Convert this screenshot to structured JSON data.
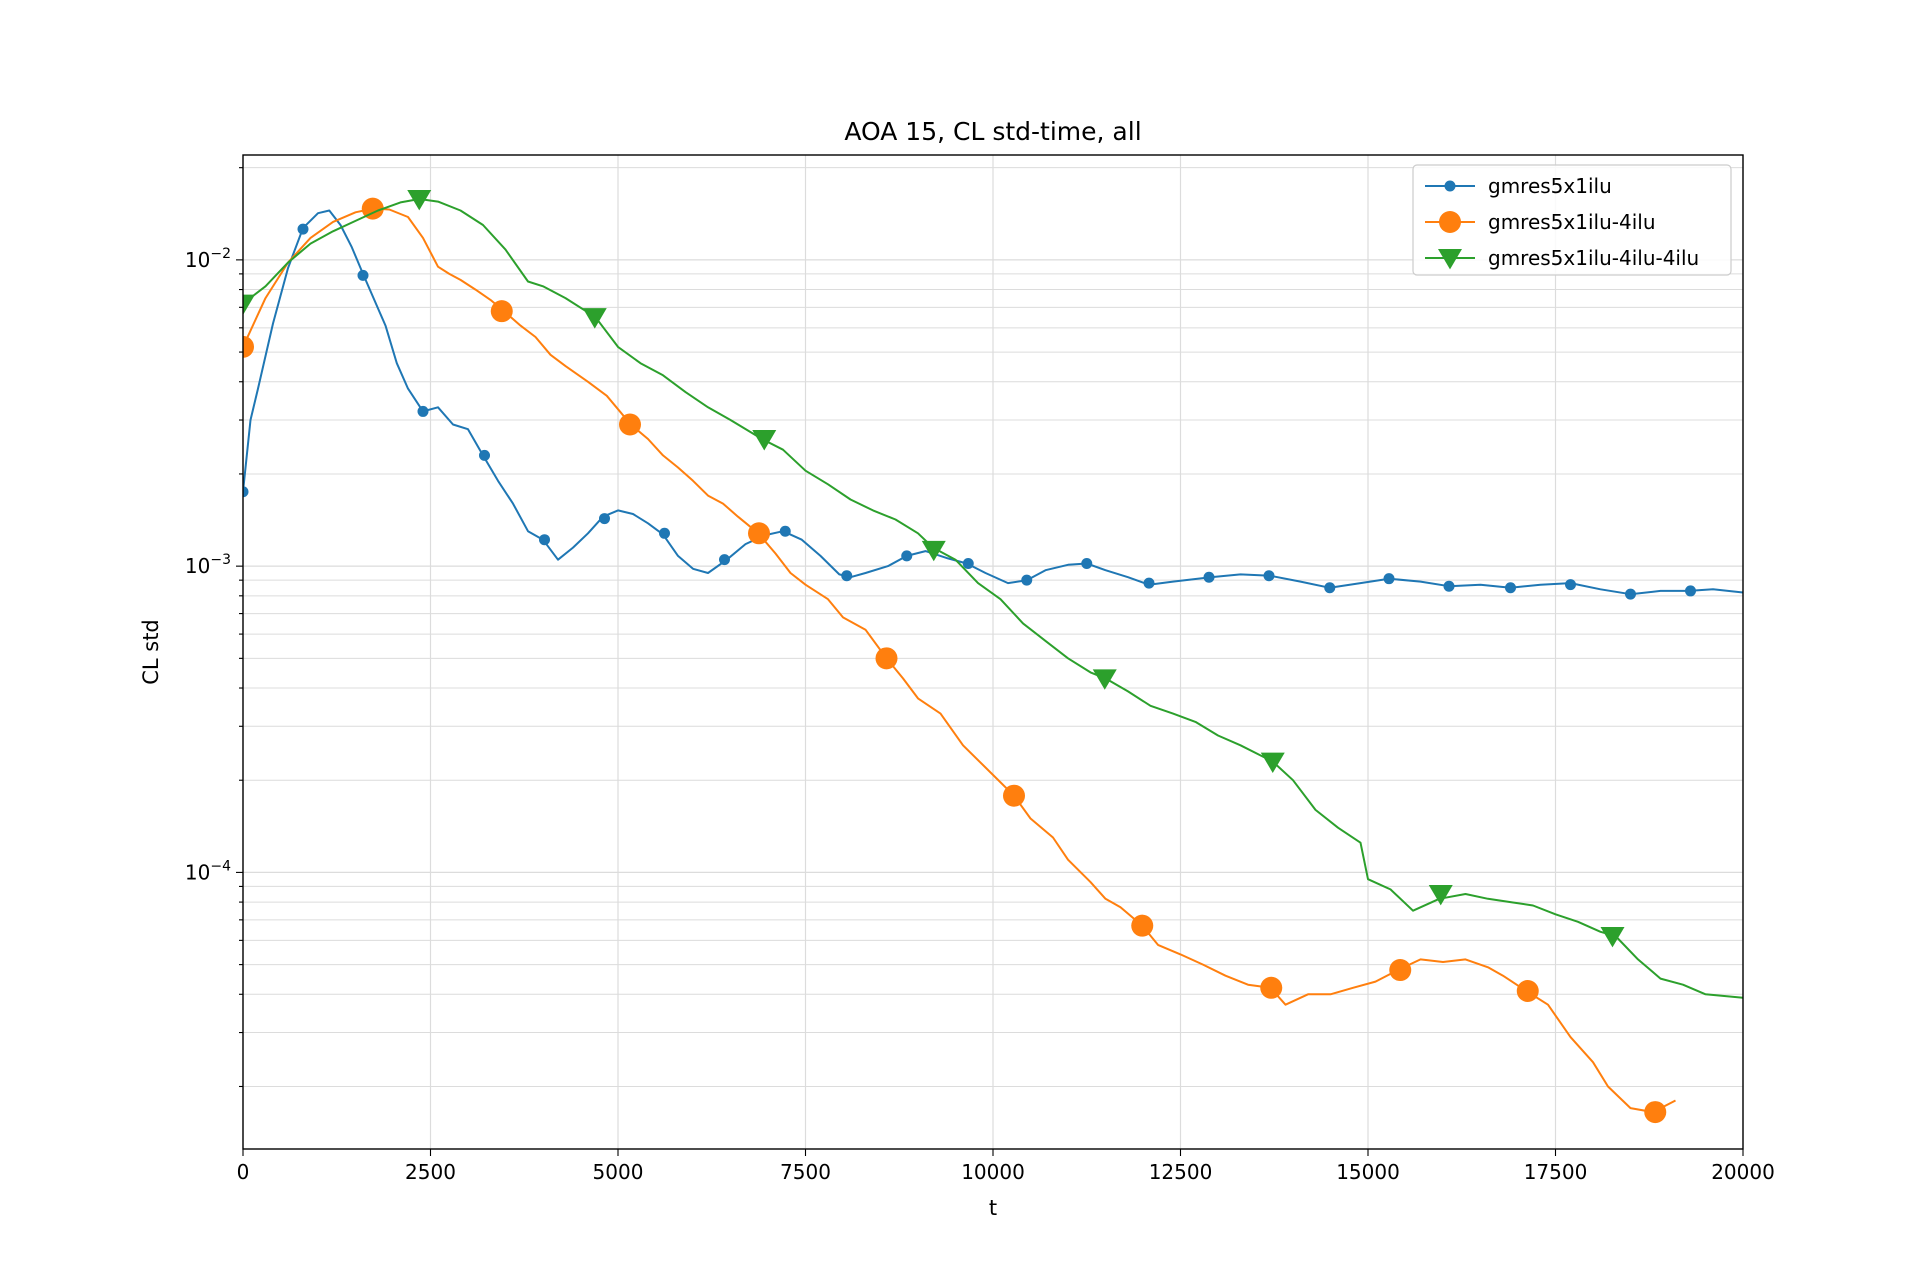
{
  "chart_data": {
    "type": "line",
    "title": "AOA 15, CL std-time, all",
    "xlabel": "t",
    "ylabel": "CL std",
    "xlim": [
      0,
      20000
    ],
    "ylim": [
      1.25e-05,
      0.022
    ],
    "yscale": "log",
    "grid": true,
    "legend_position": "top-right",
    "x_ticks": [
      0,
      2500,
      5000,
      7500,
      10000,
      12500,
      15000,
      17500,
      20000
    ],
    "x_tick_labels": [
      "0",
      "2500",
      "5000",
      "7500",
      "10000",
      "12500",
      "15000",
      "17500",
      "20000"
    ],
    "y_ticks": [
      0.0001,
      0.001,
      0.01
    ],
    "y_tick_labels": [
      {
        "base": "10",
        "exp": "−4"
      },
      {
        "base": "10",
        "exp": "−3"
      },
      {
        "base": "10",
        "exp": "−2"
      }
    ],
    "series": [
      {
        "name": "gmres5x1ilu",
        "color": "#1f77b4",
        "marker": "circle-small",
        "x": [
          0,
          100,
          200,
          400,
          600,
          800,
          1000,
          1150,
          1300,
          1450,
          1600,
          1750,
          1900,
          2050,
          2200,
          2400,
          2600,
          2800,
          3000,
          3200,
          3400,
          3600,
          3800,
          4000,
          4200,
          4400,
          4600,
          4800,
          5000,
          5200,
          5400,
          5600,
          5800,
          6000,
          6200,
          6450,
          6700,
          6950,
          7200,
          7450,
          7700,
          7950,
          8100,
          8300,
          8600,
          8850,
          9100,
          9400,
          9650,
          9900,
          10200,
          10450,
          10700,
          11000,
          11250,
          11500,
          11800,
          12080,
          12400,
          12900,
          13300,
          13700,
          14100,
          14490,
          14900,
          15280,
          15700,
          16080,
          16500,
          16900,
          17300,
          17700,
          18100,
          18500,
          18900,
          19280,
          19600,
          20000
        ],
        "y": [
          0.00175,
          0.003,
          0.0038,
          0.0062,
          0.0094,
          0.0127,
          0.0142,
          0.0145,
          0.013,
          0.011,
          0.009,
          0.0074,
          0.0061,
          0.0046,
          0.0038,
          0.0032,
          0.0033,
          0.0029,
          0.0028,
          0.0023,
          0.0019,
          0.0016,
          0.0013,
          0.00122,
          0.00105,
          0.00115,
          0.00128,
          0.00145,
          0.00152,
          0.00148,
          0.00138,
          0.00127,
          0.00108,
          0.00098,
          0.00095,
          0.00105,
          0.00118,
          0.00126,
          0.0013,
          0.00122,
          0.00108,
          0.00094,
          0.00092,
          0.00095,
          0.001,
          0.00108,
          0.00112,
          0.00106,
          0.00102,
          0.00095,
          0.00088,
          0.0009,
          0.00097,
          0.00101,
          0.00102,
          0.00097,
          0.00092,
          0.00087,
          0.00089,
          0.00092,
          0.00094,
          0.00093,
          0.00089,
          0.00085,
          0.00088,
          0.00091,
          0.00089,
          0.00086,
          0.00087,
          0.00085,
          0.00087,
          0.00088,
          0.00084,
          0.00081,
          0.00083,
          0.00083,
          0.00084,
          0.00082
        ],
        "marker_x": [
          0,
          800,
          1600,
          2400,
          3220,
          4020,
          4820,
          5620,
          6420,
          7230,
          8050,
          8850,
          9670,
          10450,
          11250,
          12080,
          12880,
          13680,
          14490,
          15280,
          16080,
          16900,
          17700,
          18500,
          19300
        ],
        "marker_y": [
          0.00175,
          0.0126,
          0.0089,
          0.0032,
          0.0023,
          0.00122,
          0.00143,
          0.00128,
          0.00105,
          0.0013,
          0.00093,
          0.00108,
          0.00102,
          0.0009,
          0.00102,
          0.00088,
          0.00092,
          0.00093,
          0.00085,
          0.00091,
          0.00086,
          0.00085,
          0.00087,
          0.00081,
          0.00083
        ]
      },
      {
        "name": "gmres5x1ilu-4ilu",
        "color": "#ff7f0e",
        "marker": "circle-large",
        "x": [
          0,
          300,
          600,
          900,
          1200,
          1500,
          1730,
          1950,
          2200,
          2400,
          2600,
          2750,
          2900,
          3100,
          3300,
          3480,
          3700,
          3900,
          4100,
          4300,
          4600,
          4850,
          5170,
          5400,
          5600,
          5800,
          6000,
          6200,
          6400,
          6600,
          6870,
          7100,
          7300,
          7500,
          7800,
          8000,
          8300,
          8580,
          8800,
          9000,
          9300,
          9600,
          9900,
          10280,
          10500,
          10800,
          11000,
          11300,
          11500,
          11700,
          11990,
          12200,
          12500,
          12800,
          13100,
          13400,
          13700,
          13900,
          14200,
          14500,
          14800,
          15100,
          15400,
          15700,
          16000,
          16300,
          16600,
          16800,
          17110,
          17400,
          17700,
          18000,
          18200,
          18500,
          18800,
          19100
        ],
        "y": [
          0.0052,
          0.0075,
          0.0098,
          0.0118,
          0.0133,
          0.0143,
          0.0147,
          0.0146,
          0.0138,
          0.0118,
          0.0095,
          0.009,
          0.0086,
          0.008,
          0.0074,
          0.0068,
          0.0061,
          0.0056,
          0.0049,
          0.0045,
          0.004,
          0.0036,
          0.0029,
          0.0026,
          0.0023,
          0.0021,
          0.0019,
          0.0017,
          0.0016,
          0.00145,
          0.00128,
          0.0011,
          0.00095,
          0.00087,
          0.00078,
          0.00068,
          0.00062,
          0.0005,
          0.00043,
          0.00037,
          0.00033,
          0.00026,
          0.00022,
          0.000178,
          0.00015,
          0.00013,
          0.00011,
          9.3e-05,
          8.2e-05,
          7.7e-05,
          6.7e-05,
          5.8e-05,
          5.4e-05,
          5e-05,
          4.6e-05,
          4.3e-05,
          4.2e-05,
          3.7e-05,
          4e-05,
          4e-05,
          4.2e-05,
          4.4e-05,
          4.8e-05,
          5.2e-05,
          5.1e-05,
          5.2e-05,
          4.9e-05,
          4.6e-05,
          4.1e-05,
          3.7e-05,
          2.9e-05,
          2.4e-05,
          2e-05,
          1.7e-05,
          1.65e-05,
          1.8e-05
        ],
        "marker_x": [
          0,
          1730,
          3450,
          5160,
          6880,
          8580,
          10280,
          11990,
          13710,
          15430,
          17130,
          18830
        ],
        "marker_y": [
          0.0052,
          0.0147,
          0.0068,
          0.0029,
          0.00128,
          0.0005,
          0.000178,
          6.7e-05,
          4.2e-05,
          4.8e-05,
          4.1e-05,
          1.65e-05
        ]
      },
      {
        "name": "gmres5x1ilu-4ilu-4ilu",
        "color": "#2ca02c",
        "marker": "triangle-down",
        "x": [
          0,
          300,
          600,
          900,
          1200,
          1500,
          1800,
          2100,
          2350,
          2600,
          2900,
          3200,
          3500,
          3800,
          4000,
          4300,
          4700,
          5000,
          5300,
          5600,
          5900,
          6200,
          6500,
          6920,
          7200,
          7500,
          7800,
          8100,
          8400,
          8700,
          9000,
          9200,
          9500,
          9800,
          10100,
          10400,
          10700,
          11000,
          11300,
          11500,
          11800,
          12100,
          12400,
          12700,
          13000,
          13300,
          13730,
          14000,
          14300,
          14600,
          14900,
          15000,
          15300,
          15600,
          15950,
          16300,
          16600,
          16900,
          17200,
          17500,
          17800,
          18100,
          18300,
          18600,
          18900,
          19200,
          19500,
          20000
        ],
        "y": [
          0.0072,
          0.0082,
          0.0098,
          0.0113,
          0.0124,
          0.0134,
          0.0145,
          0.0154,
          0.0158,
          0.0155,
          0.0145,
          0.013,
          0.0108,
          0.0085,
          0.0082,
          0.0075,
          0.0065,
          0.0052,
          0.0046,
          0.0042,
          0.0037,
          0.0033,
          0.003,
          0.0026,
          0.0024,
          0.00205,
          0.00185,
          0.00165,
          0.00152,
          0.00142,
          0.00128,
          0.00115,
          0.00105,
          0.00088,
          0.00078,
          0.00065,
          0.00057,
          0.0005,
          0.00045,
          0.00043,
          0.00039,
          0.00035,
          0.00033,
          0.00031,
          0.00028,
          0.00026,
          0.00023,
          0.0002,
          0.00016,
          0.00014,
          0.000125,
          9.5e-05,
          8.8e-05,
          7.5e-05,
          8.2e-05,
          8.5e-05,
          8.2e-05,
          8e-05,
          7.8e-05,
          7.3e-05,
          6.9e-05,
          6.4e-05,
          6.2e-05,
          5.2e-05,
          4.5e-05,
          4.3e-05,
          4e-05,
          3.9e-05
        ],
        "marker_x": [
          0,
          2350,
          4690,
          6950,
          9210,
          11490,
          13730,
          15970,
          18260
        ],
        "marker_y": [
          0.0072,
          0.0158,
          0.0065,
          0.0026,
          0.00113,
          0.00043,
          0.00023,
          8.5e-05,
          6.2e-05
        ]
      }
    ]
  }
}
